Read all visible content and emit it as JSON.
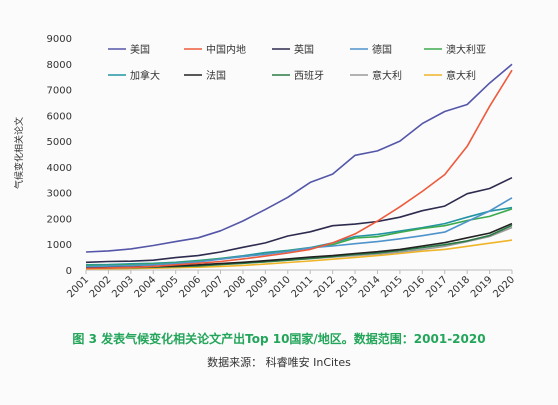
{
  "caption": {
    "title": "图 3  发表气候变化相关论文产出Top 10国家/地区。数据范围：2001-2020",
    "source": "数据来源：  科睿唯安 InCites"
  },
  "chart_data": {
    "type": "line",
    "title": "",
    "xlabel": "",
    "ylabel": "气候变化相关论文",
    "ylim": [
      0,
      9000
    ],
    "yticks": [
      0,
      1000,
      2000,
      3000,
      4000,
      5000,
      6000,
      7000,
      8000,
      9000
    ],
    "grid": false,
    "legend_position": "top-left",
    "x": [
      "2001",
      "2002",
      "2003",
      "2004",
      "2005",
      "2006",
      "2007",
      "2008",
      "2009",
      "2010",
      "2011",
      "2012",
      "2013",
      "2014",
      "2015",
      "2016",
      "2017",
      "2018",
      "2019",
      "2020"
    ],
    "series": [
      {
        "name": "美国",
        "color": "#5456a8",
        "values": [
          700,
          740,
          820,
          950,
          1100,
          1250,
          1520,
          1900,
          2350,
          2820,
          3400,
          3720,
          4450,
          4620,
          5000,
          5680,
          6150,
          6420,
          7250,
          7980
        ]
      },
      {
        "name": "中国内地",
        "color": "#ee5a3c",
        "values": [
          60,
          80,
          100,
          140,
          200,
          260,
          330,
          430,
          540,
          660,
          800,
          1050,
          1400,
          1900,
          2450,
          3050,
          3700,
          4800,
          6350,
          7750
        ]
      },
      {
        "name": "英国",
        "color": "#2d2b4e",
        "values": [
          300,
          330,
          340,
          380,
          480,
          560,
          700,
          880,
          1050,
          1320,
          1480,
          1720,
          1780,
          1880,
          2050,
          2300,
          2480,
          2960,
          3160,
          3580
        ]
      },
      {
        "name": "德国",
        "color": "#4f93cc",
        "values": [
          130,
          150,
          170,
          200,
          250,
          320,
          420,
          520,
          610,
          720,
          860,
          930,
          1020,
          1100,
          1210,
          1330,
          1470,
          1880,
          2290,
          2800
        ]
      },
      {
        "name": "澳大利亚",
        "color": "#3daa4d",
        "values": [
          170,
          170,
          200,
          230,
          270,
          350,
          440,
          520,
          620,
          740,
          860,
          980,
          1240,
          1290,
          1460,
          1610,
          1720,
          1920,
          2080,
          2370
        ]
      },
      {
        "name": "加拿大",
        "color": "#2394a3",
        "values": [
          200,
          210,
          240,
          260,
          300,
          370,
          450,
          550,
          680,
          760,
          870,
          1050,
          1300,
          1380,
          1510,
          1640,
          1800,
          2050,
          2280,
          2420
        ]
      },
      {
        "name": "法国",
        "color": "#222222",
        "values": [
          100,
          110,
          120,
          140,
          160,
          200,
          250,
          300,
          360,
          430,
          500,
          560,
          640,
          710,
          800,
          930,
          1060,
          1250,
          1430,
          1800
        ]
      },
      {
        "name": "西班牙",
        "color": "#2a7a45",
        "values": [
          70,
          80,
          90,
          110,
          130,
          160,
          210,
          260,
          320,
          380,
          450,
          520,
          600,
          660,
          760,
          870,
          980,
          1130,
          1340,
          1730
        ]
      },
      {
        "name": "意大利",
        "color": "#9a9a9a",
        "values": [
          80,
          90,
          100,
          120,
          140,
          170,
          220,
          270,
          320,
          380,
          440,
          500,
          560,
          620,
          700,
          800,
          920,
          1100,
          1300,
          1650
        ]
      },
      {
        "name": "意大利",
        "color": "#f0b428",
        "values": [
          40,
          50,
          60,
          70,
          90,
          110,
          140,
          180,
          230,
          290,
          350,
          420,
          490,
          560,
          640,
          730,
          800,
          920,
          1040,
          1160
        ]
      }
    ]
  }
}
